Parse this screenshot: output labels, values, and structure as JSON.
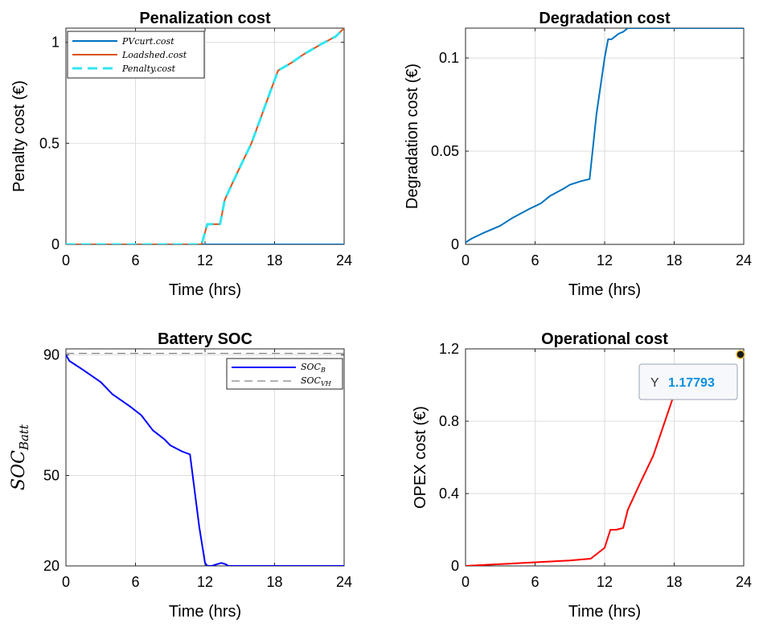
{
  "chart_data": [
    {
      "type": "line",
      "title": "Penalization cost",
      "xlabel": "Time (hrs)",
      "ylabel": "Penalty cost (€)",
      "xlim": [
        0,
        24
      ],
      "ylim": [
        0,
        1.07
      ],
      "xticks": [
        0,
        6,
        12,
        18,
        24
      ],
      "yticks": [
        0,
        0.5,
        1
      ],
      "ytick_labels": [
        "0",
        "0.5",
        "1"
      ],
      "grid": true,
      "legend_position": "top-left",
      "series": [
        {
          "name": "PVcurt.cost",
          "color": "#0072bd",
          "dash": "solid",
          "x": [
            0,
            24
          ],
          "y": [
            0,
            0
          ]
        },
        {
          "name": "Loadshed.cost",
          "color": "#d95319",
          "dash": "solid",
          "x": [
            0,
            11.7,
            12.2,
            12.5,
            13.0,
            13.3,
            13.7,
            14.5,
            16.0,
            18.3,
            19.5,
            20.5,
            22.0,
            23.3,
            24.0
          ],
          "y": [
            0,
            0,
            0.1,
            0.1,
            0.1,
            0.1,
            0.22,
            0.32,
            0.5,
            0.86,
            0.9,
            0.94,
            0.99,
            1.03,
            1.07
          ]
        },
        {
          "name": "Penalty.cost",
          "color": "#33e5f0",
          "dash": "dashed",
          "x": [
            0,
            11.7,
            12.2,
            12.5,
            13.0,
            13.3,
            13.7,
            14.5,
            16.0,
            18.3,
            19.5,
            20.5,
            22.0,
            23.3,
            24.0
          ],
          "y": [
            0,
            0,
            0.1,
            0.1,
            0.1,
            0.1,
            0.22,
            0.32,
            0.5,
            0.86,
            0.9,
            0.94,
            0.99,
            1.03,
            1.07
          ]
        }
      ]
    },
    {
      "type": "line",
      "title": "Degradation cost",
      "xlabel": "Time (hrs)",
      "ylabel": "Degradation cost (€)",
      "xlim": [
        0,
        24
      ],
      "ylim": [
        0,
        0.116
      ],
      "xticks": [
        0,
        6,
        12,
        18,
        24
      ],
      "yticks": [
        0,
        0.05,
        0.1
      ],
      "ytick_labels": [
        "0",
        "0.05",
        "0.1"
      ],
      "grid": true,
      "series": [
        {
          "name": "",
          "color": "#0072bd",
          "dash": "solid",
          "x": [
            0,
            0.5,
            1.5,
            3.0,
            4.0,
            5.5,
            6.5,
            7.3,
            8.5,
            9.0,
            10.0,
            10.7,
            11.3,
            12.0,
            12.3,
            12.6,
            13.2,
            13.6,
            14.0,
            24.0
          ],
          "y": [
            0.001,
            0.003,
            0.006,
            0.01,
            0.014,
            0.019,
            0.022,
            0.026,
            0.03,
            0.032,
            0.034,
            0.035,
            0.07,
            0.1,
            0.11,
            0.11,
            0.113,
            0.114,
            0.116,
            0.116
          ]
        }
      ]
    },
    {
      "type": "line",
      "title": "Battery SOC",
      "xlabel": "Time (hrs)",
      "ylabel": "SOC_Batt",
      "ylabel_main": "SOC",
      "ylabel_sub": "Batt",
      "xlim": [
        0,
        24
      ],
      "ylim": [
        20,
        92
      ],
      "xticks": [
        0,
        6,
        12,
        18,
        24
      ],
      "yticks": [
        20,
        50,
        90
      ],
      "ytick_labels": [
        "20",
        "50",
        "90"
      ],
      "grid": true,
      "legend_position": "top-right",
      "series": [
        {
          "name": "SOC_B",
          "name_main": "SOC",
          "name_sub": "B",
          "color": "#0000ff",
          "dash": "solid",
          "x": [
            0,
            0.3,
            1.5,
            3.0,
            4.0,
            5.5,
            6.5,
            7.5,
            8.5,
            9.0,
            10.0,
            10.7,
            11.5,
            12.0,
            12.2,
            12.6,
            13.0,
            13.4,
            13.8,
            14.0,
            24.0
          ],
          "y": [
            90,
            88,
            85,
            81,
            77,
            73,
            70,
            65,
            62,
            60,
            58,
            57,
            33,
            21,
            20,
            20,
            20.5,
            21,
            20.5,
            20,
            20
          ]
        },
        {
          "name": "SOC_VH",
          "name_main": "SOC",
          "name_sub": "VH",
          "color": "#666666",
          "dash": "dashed",
          "x": [
            0,
            24
          ],
          "y": [
            90.5,
            90.5
          ]
        }
      ]
    },
    {
      "type": "line",
      "title": "Operational cost",
      "xlabel": "Time (hrs)",
      "ylabel": "OPEX cost (€)",
      "xlim": [
        0,
        24
      ],
      "ylim": [
        0,
        1.2
      ],
      "xticks": [
        0,
        6,
        12,
        18,
        24
      ],
      "yticks": [
        0,
        0.4,
        0.8,
        1.2
      ],
      "ytick_labels": [
        "0",
        "0.4",
        "0.8",
        "1.2"
      ],
      "grid": true,
      "series": [
        {
          "name": "",
          "color": "#ff0000",
          "dash": "solid",
          "x": [
            0,
            3.0,
            6.0,
            9.0,
            10.8,
            12.0,
            12.5,
            13.0,
            13.6,
            14.0,
            15.0,
            16.2,
            18.0
          ],
          "y": [
            0,
            0.01,
            0.02,
            0.03,
            0.04,
            0.1,
            0.2,
            0.2,
            0.21,
            0.31,
            0.45,
            0.61,
            0.95
          ]
        }
      ],
      "datatip": {
        "label": "Y",
        "value": "1.17793",
        "x": 24,
        "y": 1.17793
      }
    }
  ]
}
